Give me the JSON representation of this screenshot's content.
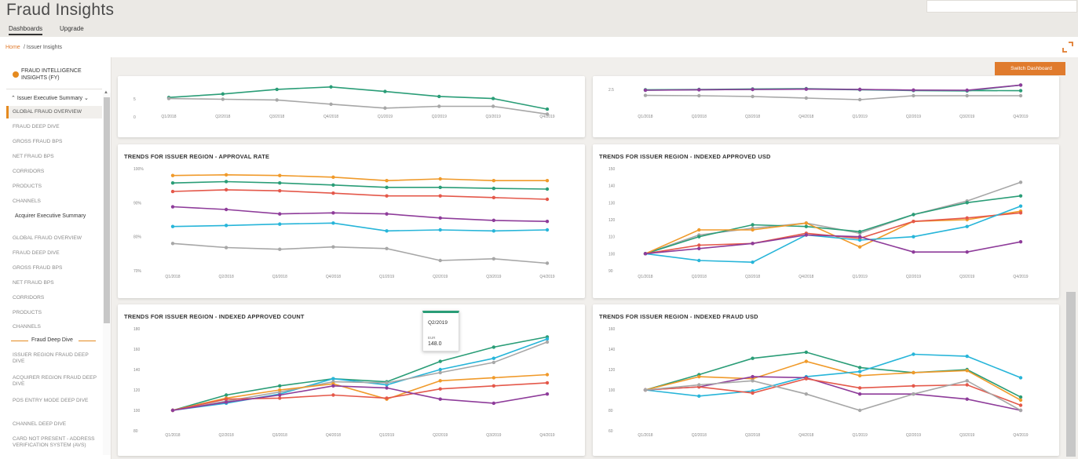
{
  "app": {
    "title": "Fraud Insights",
    "tabs": [
      {
        "label": "Dashboards"
      },
      {
        "label": "Upgrade"
      }
    ]
  },
  "breadcrumb": {
    "home": "Home",
    "rest": " / Issuer Insights"
  },
  "actions": {
    "switch_dashboard": "Switch Dashboard"
  },
  "sidebar": {
    "title": "FRAUD INTELLIGENCE INSIGHTS (FY)",
    "sections": [
      {
        "label": "Issuer Executive Summary"
      },
      {
        "label": "Acquirer Executive Summary"
      },
      {
        "label": "Fraud Deep Dive"
      }
    ],
    "items": [
      "GLOBAL FRAUD OVERVIEW",
      "FRAUD DEEP DIVE",
      "GROSS FRAUD BPS",
      "NET FRAUD BPS",
      "CORRIDORS",
      "PRODUCTS",
      "CHANNELS",
      "GLOBAL FRAUD OVERVIEW",
      "FRAUD DEEP DIVE",
      "GROSS FRAUD BPS",
      "NET FRAUD BPS",
      "CORRIDORS",
      "PRODUCTS",
      "CHANNELS",
      "ISSUER REGION FRAUD DEEP DIVE",
      "ACQUIRER REGION FRAUD DEEP DIVE",
      "POS ENTRY MODE DEEP DIVE",
      "CHANNEL DEEP DIVE",
      "CARD NOT PRESENT - ADDRESS VERIFICATION SYSTEM (AVS)"
    ]
  },
  "colors": {
    "green": "#2a9d77",
    "gray": "#a7a7a7",
    "orange": "#f09a2a",
    "red": "#e4584a",
    "purple": "#8e3c9a",
    "cyan": "#27b5d9",
    "teal": "#3aa58a",
    "accent": "#e07b2d"
  },
  "tooltip": {
    "quarter": "Q2/2019",
    "key": "EUR",
    "value": "148.0"
  },
  "chart_data": [
    {
      "type": "line",
      "title": "",
      "x": [
        "Q1/2018",
        "Q2/2018",
        "Q3/2018",
        "Q4/2018",
        "Q1/2019",
        "Q2/2019",
        "Q3/2019",
        "Q4/2019"
      ],
      "y_ticks": [
        "5",
        "0"
      ],
      "ylim": [
        0,
        10
      ],
      "series": [
        {
          "color": "green",
          "values": [
            5.5,
            6.5,
            7.8,
            8.5,
            7.2,
            5.8,
            5.2,
            2.2
          ]
        },
        {
          "color": "gray",
          "values": [
            5.2,
            5.0,
            4.8,
            3.6,
            2.5,
            3.0,
            3.0,
            0.8
          ]
        }
      ]
    },
    {
      "type": "line",
      "title": "",
      "x": [
        "Q1/2018",
        "Q2/2018",
        "Q3/2018",
        "Q4/2018",
        "Q1/2019",
        "Q2/2019",
        "Q3/2019",
        "Q4/2019"
      ],
      "y_ticks": [
        "2.5"
      ],
      "ylim": [
        1.0,
        3.0
      ],
      "series": [
        {
          "color": "green",
          "values": [
            2.48,
            2.5,
            2.53,
            2.55,
            2.5,
            2.45,
            2.43,
            2.42
          ]
        },
        {
          "color": "teal",
          "values": [
            2.45,
            2.48,
            2.5,
            2.52,
            2.48,
            2.43,
            2.4,
            2.78
          ]
        },
        {
          "color": "purple",
          "values": [
            2.45,
            2.48,
            2.5,
            2.52,
            2.5,
            2.46,
            2.45,
            2.78
          ]
        },
        {
          "color": "gray",
          "values": [
            2.12,
            2.1,
            2.05,
            1.95,
            1.85,
            2.1,
            2.1,
            2.1
          ]
        }
      ]
    },
    {
      "type": "line",
      "title": "TRENDS FOR ISSUER REGION - APPROVAL RATE",
      "x": [
        "Q1/2018",
        "Q2/2018",
        "Q3/2018",
        "Q4/2018",
        "Q1/2019",
        "Q2/2019",
        "Q3/2019",
        "Q4/2019"
      ],
      "y_ticks": [
        "100%",
        "90%",
        "80%",
        "70%"
      ],
      "ylim": [
        70,
        100
      ],
      "series": [
        {
          "color": "orange",
          "values": [
            98.0,
            98.2,
            98.0,
            97.5,
            96.5,
            97.0,
            96.5,
            96.5
          ]
        },
        {
          "color": "green",
          "values": [
            95.8,
            96.2,
            95.8,
            95.2,
            94.5,
            94.5,
            94.2,
            94.0
          ]
        },
        {
          "color": "red",
          "values": [
            93.3,
            93.8,
            93.5,
            92.8,
            92.0,
            92.0,
            91.5,
            91.0
          ]
        },
        {
          "color": "purple",
          "values": [
            88.8,
            88.0,
            86.7,
            87.0,
            86.7,
            85.5,
            84.8,
            84.5
          ]
        },
        {
          "color": "cyan",
          "values": [
            83.0,
            83.3,
            83.7,
            84.0,
            81.7,
            82.0,
            81.7,
            82.0
          ]
        },
        {
          "color": "gray",
          "values": [
            78.0,
            76.8,
            76.3,
            77.0,
            76.5,
            73.0,
            73.5,
            72.2
          ]
        }
      ]
    },
    {
      "type": "line",
      "title": "TRENDS FOR ISSUER REGION - INDEXED APPROVED USD",
      "x": [
        "Q1/2018",
        "Q2/2018",
        "Q3/2018",
        "Q4/2018",
        "Q1/2019",
        "Q2/2019",
        "Q3/2019",
        "Q4/2019"
      ],
      "y_ticks": [
        "150",
        "140",
        "130",
        "120",
        "110",
        "100",
        "90"
      ],
      "ylim": [
        90,
        150
      ],
      "series": [
        {
          "color": "gray",
          "values": [
            100,
            111,
            115,
            118,
            112,
            123,
            131,
            142
          ]
        },
        {
          "color": "green",
          "values": [
            100,
            110,
            117,
            116,
            113,
            123,
            130,
            134
          ]
        },
        {
          "color": "orange",
          "values": [
            100,
            114,
            114,
            118,
            104,
            119,
            120,
            125
          ]
        },
        {
          "color": "red",
          "values": [
            100,
            105,
            106,
            112,
            109,
            119,
            121,
            124
          ]
        },
        {
          "color": "cyan",
          "values": [
            100,
            96,
            95,
            111,
            108,
            110,
            116,
            128
          ]
        },
        {
          "color": "purple",
          "values": [
            100,
            103,
            106,
            111,
            110,
            101,
            101,
            107
          ]
        }
      ]
    },
    {
      "type": "line",
      "title": "TRENDS FOR ISSUER REGION - INDEXED APPROVED COUNT",
      "x": [
        "Q1/2018",
        "Q2/2018",
        "Q3/2018",
        "Q4/2018",
        "Q1/2019",
        "Q2/2019",
        "Q3/2019",
        "Q4/2019"
      ],
      "y_ticks": [
        "180",
        "160",
        "140",
        "120",
        "100",
        "80"
      ],
      "ylim": [
        80,
        180
      ],
      "series": [
        {
          "color": "green",
          "values": [
            100,
            115,
            124,
            131,
            128,
            148,
            162,
            172
          ]
        },
        {
          "color": "cyan",
          "values": [
            100,
            107,
            116,
            131,
            125,
            140,
            151,
            170
          ]
        },
        {
          "color": "gray",
          "values": [
            100,
            109,
            118,
            128,
            127,
            137,
            147,
            167
          ]
        },
        {
          "color": "orange",
          "values": [
            100,
            112,
            120,
            126,
            111,
            129,
            132,
            135
          ]
        },
        {
          "color": "red",
          "values": [
            100,
            111,
            112,
            115,
            112,
            121,
            124,
            127
          ]
        },
        {
          "color": "purple",
          "values": [
            100,
            108,
            115,
            124,
            122,
            111,
            107,
            116
          ]
        }
      ]
    },
    {
      "type": "line",
      "title": "TRENDS FOR ISSUER REGION - INDEXED FRAUD USD",
      "x": [
        "Q1/2018",
        "Q2/2018",
        "Q3/2018",
        "Q4/2018",
        "Q1/2019",
        "Q2/2019",
        "Q3/2019",
        "Q4/2019"
      ],
      "y_ticks": [
        "160",
        "140",
        "120",
        "100",
        "80",
        "60"
      ],
      "ylim": [
        60,
        160
      ],
      "series": [
        {
          "color": "green",
          "values": [
            100,
            115,
            131,
            137,
            122,
            117,
            120,
            93
          ]
        },
        {
          "color": "orange",
          "values": [
            100,
            113,
            111,
            128,
            114,
            117,
            119,
            90
          ]
        },
        {
          "color": "cyan",
          "values": [
            100,
            94,
            99,
            113,
            118,
            135,
            133,
            112
          ]
        },
        {
          "color": "purple",
          "values": [
            100,
            103,
            113,
            112,
            96,
            96,
            91,
            80
          ]
        },
        {
          "color": "red",
          "values": [
            100,
            103,
            97,
            111,
            102,
            104,
            105,
            85
          ]
        },
        {
          "color": "gray",
          "values": [
            100,
            105,
            109,
            96,
            80,
            96,
            109,
            80
          ]
        }
      ]
    }
  ]
}
